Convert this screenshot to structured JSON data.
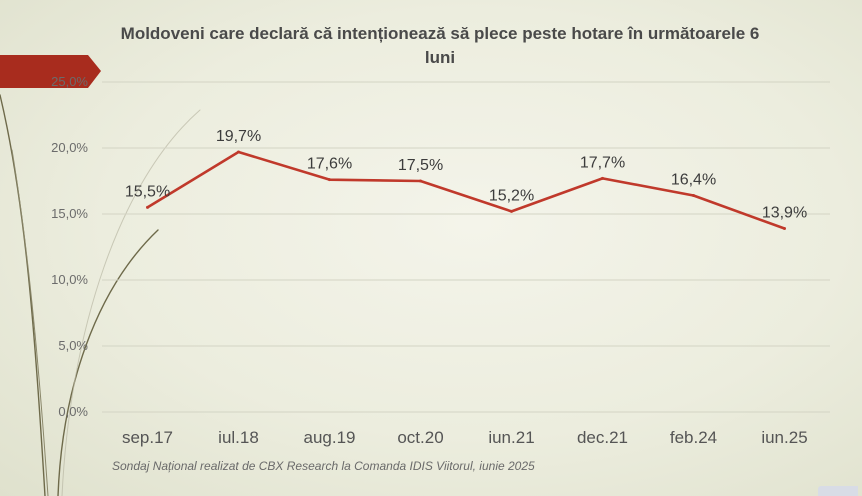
{
  "chart_data": {
    "type": "line",
    "title": "Moldoveni care declară că intenționează să plece peste hotare în următoarele 6 luni",
    "categories": [
      "sep.17",
      "iul.18",
      "aug.19",
      "oct.20",
      "iun.21",
      "dec.21",
      "feb.24",
      "iun.25"
    ],
    "series": [
      {
        "values": [
          15.5,
          19.7,
          17.6,
          17.5,
          15.2,
          17.7,
          16.4,
          13.9
        ],
        "labels": [
          "15,5%",
          "19,7%",
          "17,6%",
          "17,5%",
          "15,2%",
          "17,7%",
          "16,4%",
          "13,9%"
        ]
      }
    ],
    "y_ticks": [
      0,
      5,
      10,
      15,
      20,
      25
    ],
    "y_tick_labels": [
      "0,0%",
      "5,0%",
      "10,0%",
      "15,0%",
      "20,0%",
      "25,0%"
    ],
    "ylim": [
      0,
      25
    ],
    "grid": true,
    "line_color": "#c0392b",
    "footnote": "Sondaj Național realizat de CBX Research la Comanda IDIS Viitorul, iunie 2025"
  }
}
